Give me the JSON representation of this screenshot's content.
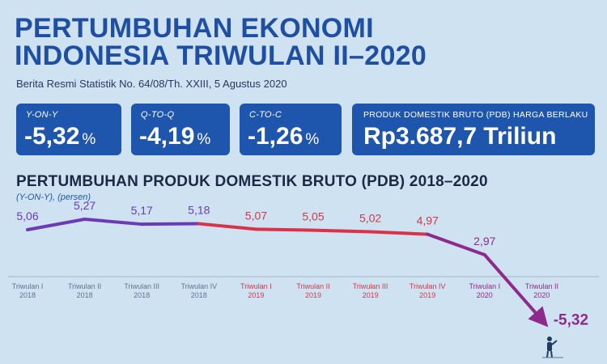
{
  "header": {
    "title_line1": "PERTUMBUHAN EKONOMI",
    "title_line2": "INDONESIA TRIWULAN II–2020",
    "subtitle": "Berita Resmi Statistik No. 64/08/Th. XXIII, 5 Agustus 2020"
  },
  "stats": [
    {
      "label": "Y-ON-Y",
      "value": "-5,32",
      "unit": "%"
    },
    {
      "label": "Q-TO-Q",
      "value": "-4,19",
      "unit": "%"
    },
    {
      "label": "C-TO-C",
      "value": "-1,26",
      "unit": "%"
    },
    {
      "label": "PRODUK DOMESTIK BRUTO (PDB) HARGA BERLAKU",
      "value": "Rp3.687,7 Triliun",
      "unit": ""
    }
  ],
  "colors": {
    "title": "#1f4fa3",
    "box": "#1f56ad",
    "line_2018": "#6a3bb5",
    "line_2019": "#d9334a",
    "line_2020": "#8e2a8a",
    "label_2018": "#6a3bb5",
    "label_2019": "#d03a4a",
    "label_2020": "#8e2a8a"
  },
  "chart_data": {
    "type": "line",
    "title": "PERTUMBUHAN PRODUK DOMESTIK BRUTO (PDB) 2018–2020",
    "ylabel": "(Y-ON-Y), (persen)",
    "categories": [
      "Triwulan I 2018",
      "Triwulan II 2018",
      "Triwulan III 2018",
      "Triwulan IV 2018",
      "Triwulan I 2019",
      "Triwulan II 2019",
      "Triwulan III 2019",
      "Triwulan IV 2019",
      "Triwulan I 2020",
      "Triwulan II 2020"
    ],
    "category_parts": [
      [
        "Triwulan I",
        "2018"
      ],
      [
        "Triwulan II",
        "2018"
      ],
      [
        "Triwulan III",
        "2018"
      ],
      [
        "Triwulan IV",
        "2018"
      ],
      [
        "Triwulan I",
        "2019"
      ],
      [
        "Triwulan II",
        "2019"
      ],
      [
        "Triwulan III",
        "2019"
      ],
      [
        "Triwulan IV",
        "2019"
      ],
      [
        "Triwulan I",
        "2020"
      ],
      [
        "Triwulan II",
        "2020"
      ]
    ],
    "values": [
      5.06,
      5.27,
      5.17,
      5.18,
      5.07,
      5.05,
      5.02,
      4.97,
      2.97,
      -5.32
    ],
    "value_labels": [
      "5,06",
      "5,27",
      "5,17",
      "5,18",
      "5,07",
      "5,05",
      "5,02",
      "4,97",
      "2,97",
      "-5,32"
    ],
    "grid": false,
    "legend": "none"
  }
}
